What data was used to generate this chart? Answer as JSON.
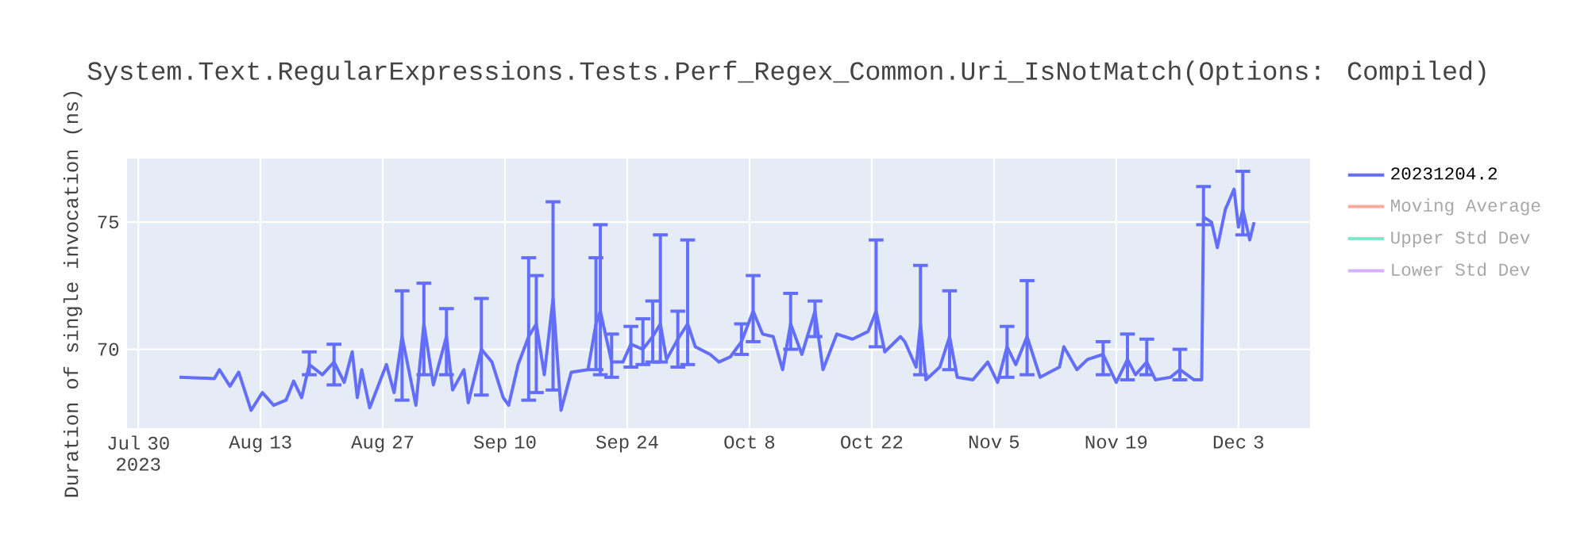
{
  "chart_data": {
    "type": "line",
    "title": "System.Text.RegularExpressions.Tests.Perf_Regex_Common.Uri_IsNotMatch(Options: Compiled)",
    "ylabel": "Duration of single invocation (ns)",
    "xlim": [
      "2023-07-28T17:00",
      "2023-12-11T05:00"
    ],
    "xticks": [
      {
        "value": "2023-07-30",
        "label": "Jul 30 2023"
      },
      {
        "value": "2023-08-13",
        "label": "Aug 13"
      },
      {
        "value": "2023-08-27",
        "label": "Aug 27"
      },
      {
        "value": "2023-09-10",
        "label": "Sep 10"
      },
      {
        "value": "2023-09-24",
        "label": "Sep 24"
      },
      {
        "value": "2023-10-08",
        "label": "Oct 8"
      },
      {
        "value": "2023-10-22",
        "label": "Oct 22"
      },
      {
        "value": "2023-11-05",
        "label": "Nov 5"
      },
      {
        "value": "2023-11-19",
        "label": "Nov 19"
      },
      {
        "value": "2023-12-03",
        "label": "Dec 3"
      }
    ],
    "ylim": [
      66.9,
      77.5
    ],
    "yticks": [
      70,
      75
    ],
    "grid": true,
    "legend": "right",
    "marker": "none",
    "line_style": "solid",
    "series": [
      {
        "name": "20231204.2",
        "color": "#636efa",
        "x": [
          "2023-08-03T17:00",
          "2023-08-07T17:00",
          "2023-08-08T07:00",
          "2023-08-09T12:00",
          "2023-08-10T12:00",
          "2023-08-11T22:00",
          "2023-08-13T05:00",
          "2023-08-14T12:00",
          "2023-08-15T22:00",
          "2023-08-16T19:00",
          "2023-08-17T17:00",
          "2023-08-18T14:00",
          "2023-08-20T02:00",
          "2023-08-21T10:00",
          "2023-08-22T14:00",
          "2023-08-23T12:00",
          "2023-08-24T02:00",
          "2023-08-24T14:00",
          "2023-08-25T12:00",
          "2023-08-27T10:00",
          "2023-08-28T07:00",
          "2023-08-29T05:00",
          "2023-08-30T19:00",
          "2023-08-31T17:00",
          "2023-09-01T19:00",
          "2023-09-03T07:00",
          "2023-09-04T00:00",
          "2023-09-05T07:00",
          "2023-09-05T19:00",
          "2023-09-07T07:00",
          "2023-09-08T12:00",
          "2023-09-09T19:00",
          "2023-09-10T10:00",
          "2023-09-11T12:00",
          "2023-09-12T17:00",
          "2023-09-13T14:00",
          "2023-09-14T12:00",
          "2023-09-15T12:00",
          "2023-09-16T10:00",
          "2023-09-17T14:00",
          "2023-09-19T12:00",
          "2023-09-20T10:00",
          "2023-09-20T22:00",
          "2023-09-22T05:00",
          "2023-09-23T12:00",
          "2023-09-24T10:00",
          "2023-09-25T19:00",
          "2023-09-26T22:00",
          "2023-09-27T19:00",
          "2023-09-28T12:00",
          "2023-09-29T19:00",
          "2023-09-30T22:00",
          "2023-10-01T19:00",
          "2023-10-03T12:00",
          "2023-10-04T12:00",
          "2023-10-05T19:00",
          "2023-10-07T02:00",
          "2023-10-08T10:00",
          "2023-10-09T12:00",
          "2023-10-10T17:00",
          "2023-10-11T19:00",
          "2023-10-12T17:00",
          "2023-10-14T00:00",
          "2023-10-15T12:00",
          "2023-10-16T10:00",
          "2023-10-18T00:00",
          "2023-10-19T19:00",
          "2023-10-21T14:00",
          "2023-10-22T12:00",
          "2023-10-23T12:00",
          "2023-10-25T07:00",
          "2023-10-25T19:00",
          "2023-10-27T02:00",
          "2023-10-27T14:00",
          "2023-10-28T05:00",
          "2023-10-29T19:00",
          "2023-10-30T22:00",
          "2023-10-31T19:00",
          "2023-11-02T14:00",
          "2023-11-04T07:00",
          "2023-11-05T10:00",
          "2023-11-06T12:00",
          "2023-11-07T12:00",
          "2023-11-08T19:00",
          "2023-11-10T07:00",
          "2023-11-12T12:00",
          "2023-11-13T00:00",
          "2023-11-14T12:00",
          "2023-11-15T17:00",
          "2023-11-17T12:00",
          "2023-11-19T00:00",
          "2023-11-20T07:00",
          "2023-11-21T05:00",
          "2023-11-22T12:00",
          "2023-11-23T12:00",
          "2023-11-25T05:00",
          "2023-11-26T07:00",
          "2023-11-27T22:00",
          "2023-11-28T19:00",
          "2023-11-29T00:00",
          "2023-11-29T22:00",
          "2023-11-30T14:00",
          "2023-12-01T12:00",
          "2023-12-02T12:00",
          "2023-12-03T00:00",
          "2023-12-03T12:00",
          "2023-12-04T07:00",
          "2023-12-04T19:00"
        ],
        "values": [
          68.9,
          68.85,
          69.2,
          68.55,
          69.1,
          67.6,
          68.3,
          67.8,
          68.0,
          68.75,
          68.1,
          69.4,
          69.0,
          69.5,
          68.7,
          69.9,
          68.1,
          69.2,
          67.7,
          69.4,
          68.3,
          70.5,
          67.8,
          71.0,
          68.6,
          70.5,
          68.4,
          69.2,
          67.9,
          70.0,
          69.5,
          68.1,
          67.8,
          69.4,
          70.5,
          71.0,
          69.0,
          72.0,
          67.6,
          69.1,
          69.2,
          71.0,
          71.5,
          69.5,
          69.5,
          70.2,
          70.0,
          70.5,
          71.0,
          69.6,
          70.4,
          71.0,
          70.1,
          69.8,
          69.5,
          69.7,
          70.3,
          71.5,
          70.6,
          70.5,
          69.2,
          71.0,
          69.8,
          71.5,
          69.2,
          70.6,
          70.4,
          70.7,
          71.5,
          69.9,
          70.5,
          70.3,
          69.3,
          71.0,
          68.8,
          69.3,
          70.5,
          68.9,
          68.8,
          69.5,
          68.7,
          70.1,
          69.4,
          70.5,
          68.9,
          69.3,
          70.1,
          69.2,
          69.6,
          69.8,
          68.7,
          69.6,
          69.0,
          69.5,
          68.8,
          68.9,
          69.2,
          68.8,
          68.8,
          75.2,
          75.0,
          74.0,
          75.5,
          76.3,
          74.8,
          75.5,
          74.3,
          75.0
        ],
        "errors": [
          null,
          null,
          null,
          null,
          null,
          null,
          null,
          null,
          null,
          null,
          null,
          [
            69.0,
            69.9
          ],
          null,
          [
            68.6,
            70.2
          ],
          null,
          null,
          null,
          null,
          null,
          null,
          null,
          [
            68.0,
            72.3
          ],
          null,
          [
            69.0,
            72.6
          ],
          null,
          [
            69.0,
            71.6
          ],
          null,
          null,
          null,
          [
            68.2,
            72.0
          ],
          null,
          null,
          null,
          null,
          [
            68.0,
            73.6
          ],
          [
            68.3,
            72.9
          ],
          null,
          [
            68.4,
            75.8
          ],
          null,
          null,
          null,
          [
            69.2,
            73.6
          ],
          [
            69.0,
            74.9
          ],
          [
            68.9,
            70.6
          ],
          null,
          [
            69.3,
            70.9
          ],
          [
            69.4,
            71.2
          ],
          [
            69.5,
            71.9
          ],
          [
            69.5,
            74.5
          ],
          null,
          [
            69.3,
            71.5
          ],
          [
            69.4,
            74.3
          ],
          null,
          null,
          null,
          null,
          [
            69.8,
            71.0
          ],
          [
            70.3,
            72.9
          ],
          null,
          null,
          null,
          [
            70.0,
            72.2
          ],
          null,
          [
            70.5,
            71.9
          ],
          null,
          null,
          null,
          null,
          [
            70.1,
            74.3
          ],
          null,
          null,
          null,
          null,
          [
            69.0,
            73.3
          ],
          null,
          null,
          [
            69.2,
            72.3
          ],
          null,
          null,
          null,
          null,
          [
            68.9,
            70.9
          ],
          null,
          [
            69.0,
            72.7
          ],
          null,
          null,
          null,
          null,
          null,
          [
            69.0,
            70.3
          ],
          null,
          [
            68.8,
            70.6
          ],
          null,
          [
            69.0,
            70.4
          ],
          null,
          null,
          [
            68.8,
            70.0
          ],
          null,
          null,
          [
            74.9,
            76.4
          ],
          null,
          null,
          null,
          null,
          null,
          [
            74.5,
            77.0
          ],
          null,
          null
        ]
      },
      {
        "name": "Moving Average",
        "color": "#f7ab9d"
      },
      {
        "name": "Upper Std Dev",
        "color": "#80e5cb"
      },
      {
        "name": "Lower Std Dev",
        "color": "#d5b1fd"
      }
    ]
  }
}
